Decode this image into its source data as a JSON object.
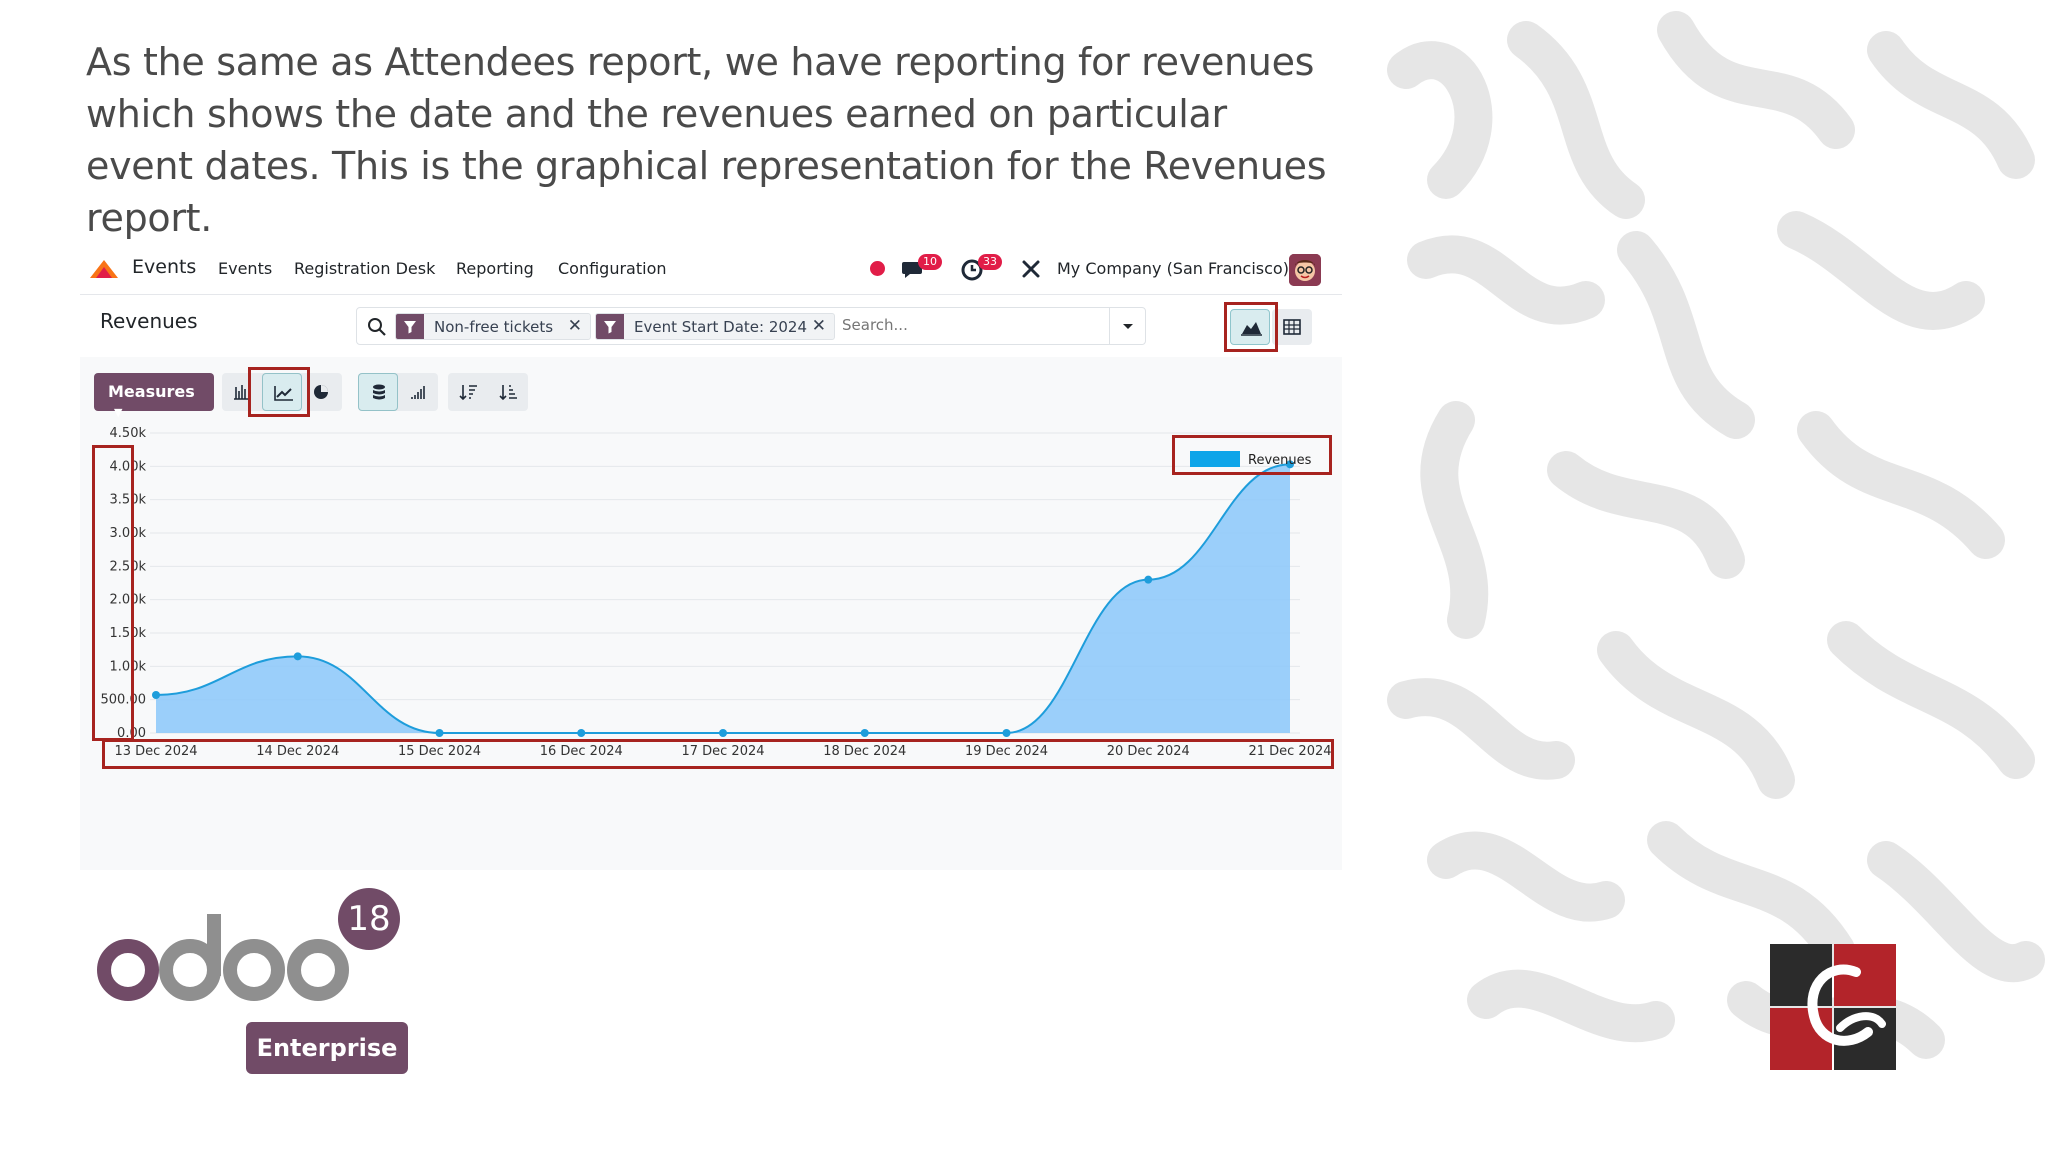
{
  "slide": {
    "text": "As the same as Attendees report, we have reporting for revenues which shows the date and the revenues earned on particular event dates. This is the graphical representation for the Revenues report."
  },
  "navbar": {
    "app_name": "Events",
    "menu": [
      "Events",
      "Registration Desk",
      "Reporting",
      "Configuration"
    ],
    "messages_count": "10",
    "activities_count": "33",
    "company": "My Company (San Francisco)"
  },
  "control_panel": {
    "title": "Revenues",
    "facets": [
      "Non-free tickets",
      "Event Start Date: 2024"
    ],
    "search_placeholder": "Search...",
    "measures_label": "Measures"
  },
  "chart_data": {
    "type": "area",
    "x": [
      "13 Dec 2024",
      "14 Dec 2024",
      "15 Dec 2024",
      "16 Dec 2024",
      "17 Dec 2024",
      "18 Dec 2024",
      "19 Dec 2024",
      "20 Dec 2024",
      "21 Dec 2024"
    ],
    "series": [
      {
        "name": "Revenues",
        "values": [
          570,
          1150,
          0,
          0,
          0,
          0,
          0,
          2300,
          4030
        ]
      }
    ],
    "yticks": [
      "0.00",
      "500.00",
      "1.00k",
      "1.50k",
      "2.00k",
      "2.50k",
      "3.00k",
      "3.50k",
      "4.00k",
      "4.50k"
    ],
    "ylim": [
      0,
      4500
    ],
    "grid": true,
    "legend_position": "top-right",
    "colors": {
      "fill": "#90caf9",
      "line": "#1e9ddb",
      "legend": "#0ea5e9"
    }
  },
  "logos": {
    "odoo_version": "18",
    "edition": "Enterprise"
  }
}
